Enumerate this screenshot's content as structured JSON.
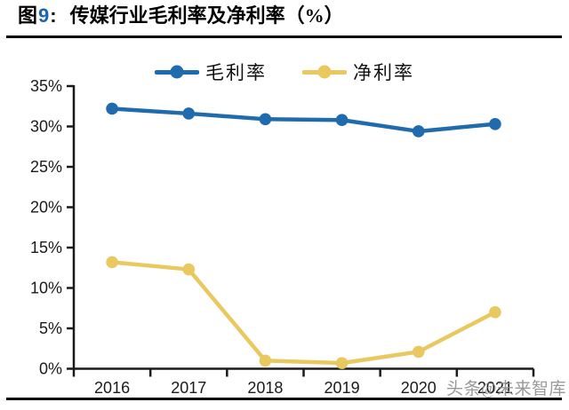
{
  "header": {
    "figure_prefix": "图",
    "figure_number": "9",
    "separator": ":",
    "title": "传媒行业毛利率及净利率（%）",
    "accent_color": "#1A64B4"
  },
  "watermark": {
    "text": "头条@未来智库",
    "color": "#8B8B8B"
  },
  "chart_data": {
    "type": "line",
    "title": "传媒行业毛利率及净利率（%）",
    "categories": [
      "2016",
      "2017",
      "2018",
      "2019",
      "2020",
      "2021"
    ],
    "series": [
      {
        "name": "毛利率",
        "color": "#1F6BAE",
        "values": [
          32.2,
          31.6,
          30.9,
          30.8,
          29.4,
          30.3
        ]
      },
      {
        "name": "净利率",
        "color": "#E9C95F",
        "values": [
          13.2,
          12.3,
          1.0,
          0.7,
          2.1,
          7.0
        ]
      }
    ],
    "xlabel": "",
    "ylabel": "",
    "ylim": [
      0,
      35
    ],
    "ytick_step": 5,
    "ytick_suffix": "%",
    "yticklabels": [
      "0%",
      "5%",
      "10%",
      "15%",
      "20%",
      "25%",
      "30%",
      "35%"
    ],
    "grid": false,
    "legend_position": "top-center",
    "axis_color": "#1a1a1a",
    "marker": "circle"
  }
}
